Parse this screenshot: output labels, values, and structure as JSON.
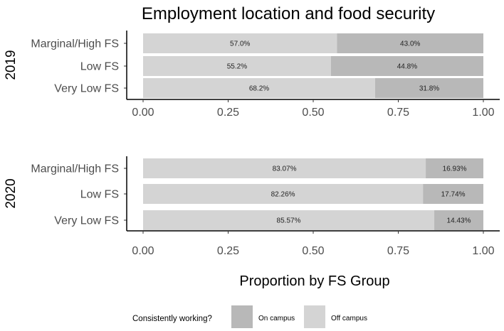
{
  "chart_data": {
    "type": "bar",
    "orientation": "horizontal",
    "stacked": true,
    "title": "Employment location and food security",
    "xlabel": "Proportion by FS Group",
    "xlim": [
      0,
      1
    ],
    "xticks": [
      "0.00",
      "0.25",
      "0.50",
      "0.75",
      "1.00"
    ],
    "categories": [
      "Marginal/High FS",
      "Low FS",
      "Very Low FS"
    ],
    "legend": {
      "title": "Consistently working?",
      "position": "bottom",
      "items": [
        {
          "name": "On campus",
          "color": "#b8b8b8"
        },
        {
          "name": "Off campus",
          "color": "#d4d4d4"
        }
      ]
    },
    "facets": [
      {
        "name": "2019",
        "series": [
          {
            "name": "Off campus",
            "color": "#d4d4d4",
            "values": [
              0.57,
              0.552,
              0.682
            ],
            "labels": [
              "57.0%",
              "55.2%",
              "68.2%"
            ]
          },
          {
            "name": "On campus",
            "color": "#b8b8b8",
            "values": [
              0.43,
              0.448,
              0.318
            ],
            "labels": [
              "43.0%",
              "44.8%",
              "31.8%"
            ]
          }
        ]
      },
      {
        "name": "2020",
        "series": [
          {
            "name": "Off campus",
            "color": "#d4d4d4",
            "values": [
              0.8307,
              0.8226,
              0.8557
            ],
            "labels": [
              "83.07%",
              "82.26%",
              "85.57%"
            ]
          },
          {
            "name": "On campus",
            "color": "#b8b8b8",
            "values": [
              0.1693,
              0.1774,
              0.1443
            ],
            "labels": [
              "16.93%",
              "17.74%",
              "14.43%"
            ]
          }
        ]
      }
    ]
  }
}
